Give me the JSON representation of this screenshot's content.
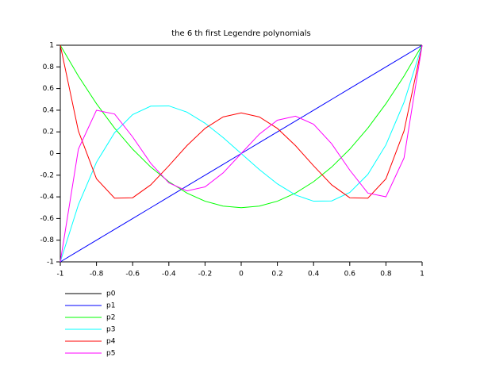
{
  "chart_data": {
    "type": "line",
    "title": "the 6 th first Legendre polynomials",
    "x": [
      -1,
      -0.9,
      -0.8,
      -0.7,
      -0.6,
      -0.5,
      -0.4,
      -0.3,
      -0.2,
      -0.1,
      0,
      0.1,
      0.2,
      0.3,
      0.4,
      0.5,
      0.6,
      0.7,
      0.8,
      0.9,
      1
    ],
    "series": [
      {
        "name": "p0",
        "color": "#000000",
        "values": [
          1,
          1,
          1,
          1,
          1,
          1,
          1,
          1,
          1,
          1,
          1,
          1,
          1,
          1,
          1,
          1,
          1,
          1,
          1,
          1,
          1
        ]
      },
      {
        "name": "p1",
        "color": "#0000ff",
        "values": [
          -1,
          -0.9,
          -0.8,
          -0.7,
          -0.6,
          -0.5,
          -0.4,
          -0.3,
          -0.2,
          -0.1,
          0,
          0.1,
          0.2,
          0.3,
          0.4,
          0.5,
          0.6,
          0.7,
          0.8,
          0.9,
          1
        ]
      },
      {
        "name": "p2",
        "color": "#00ff00",
        "values": [
          1,
          0.715,
          0.46,
          0.235,
          0.04,
          -0.125,
          -0.26,
          -0.365,
          -0.44,
          -0.485,
          -0.5,
          -0.485,
          -0.44,
          -0.365,
          -0.26,
          -0.125,
          0.04,
          0.235,
          0.46,
          0.715,
          1
        ]
      },
      {
        "name": "p3",
        "color": "#00ffff",
        "values": [
          -1,
          -0.4725,
          -0.08,
          0.1925,
          0.36,
          0.4375,
          0.44,
          0.3825,
          0.28,
          0.1475,
          0,
          -0.1475,
          -0.28,
          -0.3825,
          -0.44,
          -0.4375,
          -0.36,
          -0.1925,
          0.08,
          0.4725,
          1
        ]
      },
      {
        "name": "p4",
        "color": "#ff0000",
        "values": [
          1,
          0.208,
          -0.233,
          -0.412,
          -0.408,
          -0.289,
          -0.113,
          0.073,
          0.232,
          0.338,
          0.375,
          0.338,
          0.232,
          0.073,
          -0.113,
          -0.289,
          -0.408,
          -0.412,
          -0.233,
          0.208,
          1
        ]
      },
      {
        "name": "p5",
        "color": "#ff00ff",
        "values": [
          -1,
          0.041,
          0.3995,
          0.365,
          0.153,
          -0.09,
          -0.271,
          -0.345,
          -0.308,
          -0.179,
          0,
          0.179,
          0.308,
          0.345,
          0.271,
          0.09,
          -0.153,
          -0.365,
          -0.3995,
          -0.041,
          1
        ]
      }
    ],
    "xlim": [
      -1,
      1
    ],
    "xticks": [
      -1,
      -0.8,
      -0.6,
      -0.4,
      -0.2,
      0,
      0.2,
      0.4,
      0.6,
      0.8,
      1
    ],
    "ylim": [
      -1,
      1
    ],
    "yticks": [
      -1,
      -0.8,
      -0.6,
      -0.4,
      -0.2,
      0,
      0.2,
      0.4,
      0.6,
      0.8,
      1
    ],
    "legend": "bottom-left"
  }
}
